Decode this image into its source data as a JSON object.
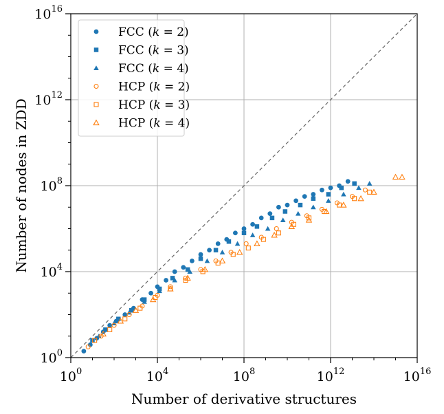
{
  "chart_data": {
    "type": "scatter",
    "xlabel": "Number of derivative structures",
    "ylabel": "Number of nodes in ZDD",
    "xscale": "log",
    "yscale": "log",
    "xlim_exp": [
      0,
      16
    ],
    "ylim_exp": [
      0,
      16
    ],
    "xticks": [
      {
        "exp": 0,
        "base": "10",
        "sup": "0"
      },
      {
        "exp": 4,
        "base": "10",
        "sup": "4"
      },
      {
        "exp": 8,
        "base": "10",
        "sup": "8"
      },
      {
        "exp": 12,
        "base": "10",
        "sup": "12"
      },
      {
        "exp": 16,
        "base": "10",
        "sup": "16"
      }
    ],
    "yticks": [
      {
        "exp": 0,
        "base": "10",
        "sup": "0"
      },
      {
        "exp": 4,
        "base": "10",
        "sup": "4"
      },
      {
        "exp": 8,
        "base": "10",
        "sup": "8"
      },
      {
        "exp": 12,
        "base": "10",
        "sup": "12"
      },
      {
        "exp": 16,
        "base": "10",
        "sup": "16"
      }
    ],
    "grid": true,
    "reference_line": "y = x (dashed gray)",
    "legend_position": "upper-left",
    "series": [
      {
        "name": "FCC (k = 2)",
        "legend": {
          "prefix": "FCC (",
          "var": "k",
          "suffix": " = 2)"
        },
        "marker": "circle-filled",
        "color": "#1f77b4",
        "points": [
          [
            0.6,
            0.3
          ],
          [
            0.9,
            0.6
          ],
          [
            1.2,
            0.9
          ],
          [
            1.5,
            1.2
          ],
          [
            1.8,
            1.5
          ],
          [
            2.1,
            1.7
          ],
          [
            2.5,
            2.0
          ],
          [
            2.9,
            2.3
          ],
          [
            3.3,
            2.7
          ],
          [
            3.7,
            3.0
          ],
          [
            4.0,
            3.3
          ],
          [
            4.4,
            3.6
          ],
          [
            4.8,
            4.0
          ],
          [
            5.2,
            4.2
          ],
          [
            5.6,
            4.5
          ],
          [
            6.0,
            4.8
          ],
          [
            6.4,
            5.0
          ],
          [
            6.8,
            5.3
          ],
          [
            7.2,
            5.5
          ],
          [
            7.6,
            5.8
          ],
          [
            8.0,
            6.0
          ],
          [
            8.4,
            6.2
          ],
          [
            8.8,
            6.5
          ],
          [
            9.2,
            6.7
          ],
          [
            9.6,
            7.0
          ],
          [
            10.0,
            7.1
          ],
          [
            10.4,
            7.3
          ],
          [
            10.8,
            7.5
          ],
          [
            11.2,
            7.6
          ],
          [
            11.6,
            7.8
          ],
          [
            12.0,
            7.9
          ],
          [
            12.4,
            8.0
          ],
          [
            12.8,
            8.2
          ]
        ]
      },
      {
        "name": "FCC (k = 3)",
        "legend": {
          "prefix": "FCC (",
          "var": "k",
          "suffix": " = 3)"
        },
        "marker": "square-filled",
        "color": "#1f77b4",
        "points": [
          [
            1.0,
            0.8
          ],
          [
            1.6,
            1.3
          ],
          [
            2.2,
            1.8
          ],
          [
            2.8,
            2.2
          ],
          [
            3.4,
            2.7
          ],
          [
            4.1,
            3.2
          ],
          [
            4.7,
            3.7
          ],
          [
            5.4,
            4.1
          ],
          [
            6.0,
            4.6
          ],
          [
            6.7,
            5.0
          ],
          [
            7.3,
            5.4
          ],
          [
            8.0,
            5.8
          ],
          [
            8.6,
            6.1
          ],
          [
            9.3,
            6.5
          ],
          [
            9.9,
            6.8
          ],
          [
            10.6,
            7.1
          ],
          [
            11.2,
            7.4
          ],
          [
            11.9,
            7.6
          ],
          [
            12.5,
            7.9
          ],
          [
            13.1,
            8.1
          ]
        ]
      },
      {
        "name": "FCC (k = 4)",
        "legend": {
          "prefix": "FCC (",
          "var": "k",
          "suffix": " = 4)"
        },
        "marker": "triangle-filled",
        "color": "#1f77b4",
        "points": [
          [
            1.3,
            1.0
          ],
          [
            2.0,
            1.6
          ],
          [
            2.7,
            2.1
          ],
          [
            3.4,
            2.6
          ],
          [
            4.1,
            3.1
          ],
          [
            4.8,
            3.6
          ],
          [
            5.5,
            4.0
          ],
          [
            6.3,
            4.5
          ],
          [
            7.0,
            4.9
          ],
          [
            7.7,
            5.3
          ],
          [
            8.4,
            5.7
          ],
          [
            9.1,
            6.0
          ],
          [
            9.8,
            6.4
          ],
          [
            10.5,
            6.7
          ],
          [
            11.2,
            7.0
          ],
          [
            11.9,
            7.3
          ],
          [
            12.6,
            7.6
          ],
          [
            13.3,
            7.9
          ],
          [
            13.8,
            8.1
          ]
        ]
      },
      {
        "name": "HCP (k = 2)",
        "legend": {
          "prefix": "HCP (",
          "var": "k",
          "suffix": " = 2)"
        },
        "marker": "circle-open",
        "color": "#ff7f0e",
        "points": [
          [
            0.8,
            0.5
          ],
          [
            1.4,
            1.0
          ],
          [
            2.0,
            1.5
          ],
          [
            2.7,
            2.0
          ],
          [
            3.3,
            2.4
          ],
          [
            4.0,
            2.9
          ],
          [
            4.6,
            3.3
          ],
          [
            5.3,
            3.7
          ],
          [
            6.0,
            4.1
          ],
          [
            6.7,
            4.5
          ],
          [
            7.4,
            4.9
          ],
          [
            8.1,
            5.3
          ],
          [
            8.8,
            5.6
          ],
          [
            9.5,
            6.0
          ],
          [
            10.2,
            6.3
          ],
          [
            10.9,
            6.6
          ],
          [
            11.6,
            6.9
          ],
          [
            12.3,
            7.2
          ],
          [
            13.0,
            7.5
          ],
          [
            13.6,
            7.8
          ]
        ]
      },
      {
        "name": "HCP (k = 3)",
        "legend": {
          "prefix": "HCP (",
          "var": "k",
          "suffix": " = 3)"
        },
        "marker": "square-open",
        "color": "#ff7f0e",
        "points": [
          [
            1.1,
            0.8
          ],
          [
            1.8,
            1.3
          ],
          [
            2.5,
            1.8
          ],
          [
            3.2,
            2.3
          ],
          [
            3.9,
            2.8
          ],
          [
            4.6,
            3.2
          ],
          [
            5.3,
            3.6
          ],
          [
            6.1,
            4.0
          ],
          [
            6.8,
            4.4
          ],
          [
            7.5,
            4.8
          ],
          [
            8.2,
            5.1
          ],
          [
            8.9,
            5.5
          ],
          [
            9.6,
            5.8
          ],
          [
            10.3,
            6.2
          ],
          [
            11.0,
            6.5
          ],
          [
            11.7,
            6.8
          ],
          [
            12.4,
            7.1
          ],
          [
            13.1,
            7.4
          ],
          [
            13.8,
            7.7
          ]
        ]
      },
      {
        "name": "HCP (k = 4)",
        "legend": {
          "prefix": "HCP (",
          "var": "k",
          "suffix": " = 4)"
        },
        "marker": "triangle-open",
        "color": "#ff7f0e",
        "points": [
          [
            1.5,
            1.1
          ],
          [
            2.3,
            1.7
          ],
          [
            3.0,
            2.2
          ],
          [
            3.8,
            2.7
          ],
          [
            4.6,
            3.2
          ],
          [
            5.4,
            3.7
          ],
          [
            6.2,
            4.1
          ],
          [
            7.0,
            4.5
          ],
          [
            7.8,
            4.9
          ],
          [
            8.6,
            5.3
          ],
          [
            9.4,
            5.7
          ],
          [
            10.2,
            6.1
          ],
          [
            11.0,
            6.4
          ],
          [
            11.8,
            6.8
          ],
          [
            12.6,
            7.1
          ],
          [
            13.4,
            7.4
          ],
          [
            14.0,
            7.7
          ],
          [
            15.0,
            8.4
          ],
          [
            15.3,
            8.4
          ]
        ]
      }
    ]
  }
}
